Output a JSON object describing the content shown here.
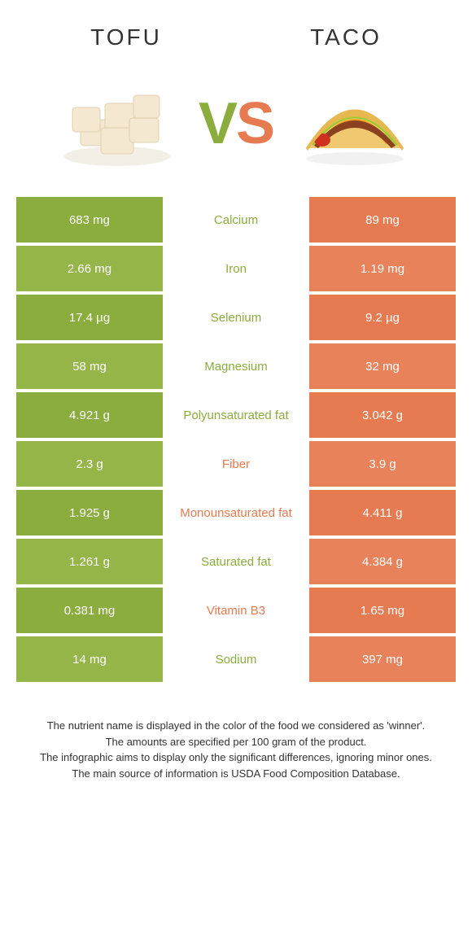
{
  "colors": {
    "tofu": "#8aad3e",
    "taco": "#e67a50",
    "tofu_alt": "#95b548",
    "taco_alt": "#e8825a"
  },
  "header": {
    "left": "Tofu",
    "right": "Taco"
  },
  "vs": {
    "v": "V",
    "s": "S"
  },
  "rows": [
    {
      "left": "683 mg",
      "mid": "Calcium",
      "right": "89 mg",
      "winner": "tofu"
    },
    {
      "left": "2.66 mg",
      "mid": "Iron",
      "right": "1.19 mg",
      "winner": "tofu"
    },
    {
      "left": "17.4 µg",
      "mid": "Selenium",
      "right": "9.2 µg",
      "winner": "tofu"
    },
    {
      "left": "58 mg",
      "mid": "Magnesium",
      "right": "32 mg",
      "winner": "tofu"
    },
    {
      "left": "4.921 g",
      "mid": "Polyunsaturated fat",
      "right": "3.042 g",
      "winner": "tofu"
    },
    {
      "left": "2.3 g",
      "mid": "Fiber",
      "right": "3.9 g",
      "winner": "taco"
    },
    {
      "left": "1.925 g",
      "mid": "Monounsaturated fat",
      "right": "4.411 g",
      "winner": "taco"
    },
    {
      "left": "1.261 g",
      "mid": "Saturated fat",
      "right": "4.384 g",
      "winner": "tofu"
    },
    {
      "left": "0.381 mg",
      "mid": "Vitamin B3",
      "right": "1.65 mg",
      "winner": "taco"
    },
    {
      "left": "14 mg",
      "mid": "Sodium",
      "right": "397 mg",
      "winner": "tofu"
    }
  ],
  "footer": {
    "l1": "The nutrient name is displayed in the color of the food we considered as 'winner'.",
    "l2": "The amounts are specified per 100 gram of the product.",
    "l3": "The infographic aims to display only the significant differences, ignoring minor ones.",
    "l4": "The main source of information is USDA Food Composition Database."
  }
}
